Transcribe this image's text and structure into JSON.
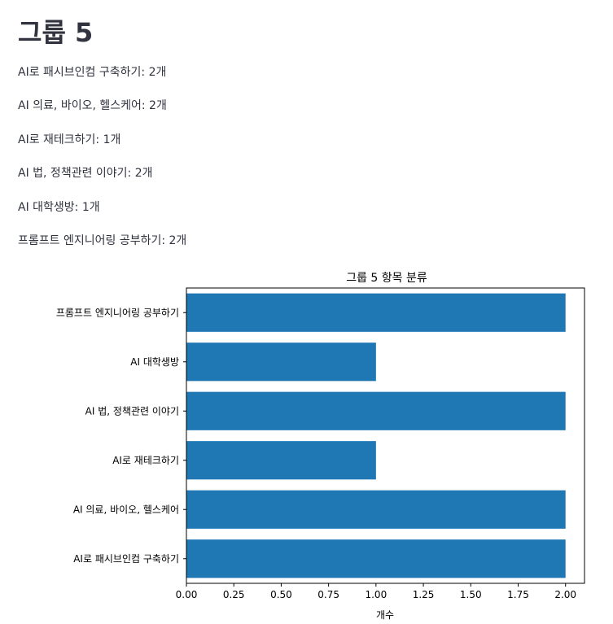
{
  "page": {
    "title": "그룹 5",
    "items": [
      "AI로 패시브인컴 구축하기: 2개",
      "AI 의료, 바이오, 헬스케어: 2개",
      "AI로 재테크하기: 1개",
      "AI 법, 정책관련 이야기: 2개",
      "AI 대학생방: 1개",
      "프롬프트 엔지니어링 공부하기: 2개"
    ]
  },
  "chart_data": {
    "type": "bar",
    "orientation": "horizontal",
    "title": "그룹 5 항목 분류",
    "xlabel": "개수",
    "ylabel": "",
    "categories": [
      "AI로 패시브인컴 구축하기",
      "AI 의료, 바이오, 헬스케어",
      "AI로 재테크하기",
      "AI 법, 정책관련 이야기",
      "AI 대학생방",
      "프롬프트 엔지니어링 공부하기"
    ],
    "values": [
      2,
      2,
      1,
      2,
      1,
      2
    ],
    "xlim": [
      0,
      2.1
    ],
    "xticks": [
      "0.00",
      "0.25",
      "0.50",
      "0.75",
      "1.00",
      "1.25",
      "1.50",
      "1.75",
      "2.00"
    ],
    "bar_color": "#1f77b4",
    "grid": false
  }
}
